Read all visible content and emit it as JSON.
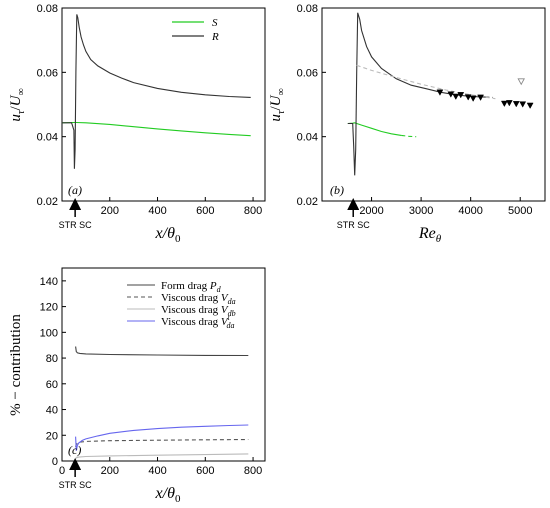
{
  "chart_data": [
    {
      "panel": "(a)",
      "type": "line",
      "xlabel": "x/θ0",
      "ylabel": "uτ/U∞",
      "xlim": [
        0,
        850
      ],
      "ylim": [
        0.02,
        0.08
      ],
      "xticks": [
        "200",
        "400",
        "600",
        "800"
      ],
      "yticks": [
        "0.02",
        "0.04",
        "0.06",
        "0.08"
      ],
      "annotation": "STR SC",
      "annotation_x": 55,
      "legend_position": "top-right",
      "series": [
        {
          "name": "S",
          "color": "#22cc22",
          "x": [
            0,
            40,
            60,
            100,
            200,
            300,
            400,
            500,
            600,
            700,
            790
          ],
          "y": [
            0.0443,
            0.0444,
            0.0444,
            0.0443,
            0.0438,
            0.0431,
            0.0424,
            0.0418,
            0.0412,
            0.0407,
            0.0403
          ]
        },
        {
          "name": "R",
          "color": "#333333",
          "x": [
            0,
            40,
            50,
            52,
            55,
            58,
            62,
            66,
            72,
            80,
            90,
            100,
            120,
            150,
            200,
            250,
            300,
            400,
            500,
            600,
            700,
            790
          ],
          "y": [
            0.0443,
            0.0443,
            0.042,
            0.03,
            0.036,
            0.06,
            0.078,
            0.077,
            0.074,
            0.071,
            0.0685,
            0.0665,
            0.064,
            0.062,
            0.0598,
            0.0582,
            0.0568,
            0.055,
            0.0538,
            0.053,
            0.0525,
            0.0522
          ]
        }
      ]
    },
    {
      "panel": "(b)",
      "type": "line",
      "xlabel": "Reθ",
      "ylabel": "uτ/U∞",
      "xlim": [
        1000,
        5500
      ],
      "ylim": [
        0.02,
        0.08
      ],
      "xticks": [
        "2000",
        "3000",
        "4000",
        "5000"
      ],
      "yticks": [
        "0.02",
        "0.04",
        "0.06",
        "0.08"
      ],
      "annotation": "STR SC",
      "annotation_x": 1630,
      "series": [
        {
          "color": "#22cc22",
          "x": [
            1520,
            1620,
            1660,
            1700,
            1800,
            2000,
            2200,
            2400,
            2600
          ],
          "y": [
            0.0441,
            0.0442,
            0.0443,
            0.0441,
            0.0436,
            0.0426,
            0.0416,
            0.0409,
            0.0404
          ]
        },
        {
          "color": "#22cc22",
          "dashed": true,
          "x": [
            2600,
            2750,
            2900
          ],
          "y": [
            0.0404,
            0.0401,
            0.04
          ]
        },
        {
          "color": "#333333",
          "x": [
            1520,
            1620,
            1640,
            1660,
            1680,
            1700,
            1720,
            1760,
            1800,
            1900,
            2000,
            2200,
            2500,
            2800,
            3100,
            3400,
            3700,
            4000,
            4300
          ],
          "y": [
            0.0441,
            0.0441,
            0.037,
            0.028,
            0.036,
            0.06,
            0.0785,
            0.0765,
            0.073,
            0.068,
            0.0648,
            0.0612,
            0.058,
            0.056,
            0.0549,
            0.0538,
            0.053,
            0.0525,
            0.0523
          ]
        },
        {
          "color": "#333333",
          "dashed": true,
          "x": [
            4300,
            4450
          ],
          "y": [
            0.0523,
            0.0522
          ]
        },
        {
          "color": "#bbbbbb",
          "dashed": true,
          "x": [
            1700,
            2000,
            2500,
            3000,
            3500,
            4000,
            4500
          ],
          "y": [
            0.0622,
            0.0606,
            0.0584,
            0.0563,
            0.0545,
            0.053,
            0.0518
          ]
        },
        {
          "type": "scatter",
          "marker": "filled-triangle-down",
          "color": "#000000",
          "x": [
            3380,
            3600,
            3700,
            3800,
            3950,
            4050,
            4200,
            4680,
            4780,
            4920,
            5050,
            5200
          ],
          "y": [
            0.0538,
            0.0532,
            0.0525,
            0.053,
            0.0523,
            0.0519,
            0.0522,
            0.0503,
            0.0505,
            0.0502,
            0.0501,
            0.0497
          ]
        },
        {
          "type": "scatter",
          "marker": "open-triangle-down",
          "color": "#888888",
          "x": [
            5020
          ],
          "y": [
            0.0572
          ]
        }
      ]
    },
    {
      "panel": "(c)",
      "type": "line",
      "xlabel": "x/θ0",
      "ylabel": "% − contribution",
      "xlim": [
        0,
        850
      ],
      "ylim": [
        0,
        150
      ],
      "xticks": [
        "0",
        "200",
        "400",
        "600",
        "800"
      ],
      "yticks": [
        "0",
        "20",
        "40",
        "60",
        "80",
        "100",
        "120",
        "140"
      ],
      "annotation": "STR SC",
      "annotation_x": 55,
      "legend_position": "top-right",
      "series": [
        {
          "name": "Form drag Pd",
          "legend_text": "Form drag ",
          "legend_italic": "Pd",
          "color": "#444444",
          "style": "solid",
          "x": [
            57,
            60,
            65,
            75,
            100,
            200,
            400,
            600,
            780
          ],
          "y": [
            89,
            85,
            84,
            83.6,
            83.2,
            82.8,
            82.4,
            82.1,
            82
          ]
        },
        {
          "name": "Viscous drag Vda",
          "legend_text": "Viscous drag ",
          "legend_italic": "Vda",
          "color": "#555555",
          "style": "dashed",
          "x": [
            57,
            60,
            70,
            100,
            200,
            400,
            600,
            780
          ],
          "y": [
            11,
            13,
            14.5,
            15.2,
            15.8,
            16.2,
            16.5,
            16.7
          ]
        },
        {
          "name": "Viscous drag Vdb",
          "legend_text": "Viscous drag ",
          "legend_italic": "Vdb",
          "color": "#bbbbbb",
          "style": "solid",
          "x": [
            57,
            60,
            70,
            100,
            200,
            400,
            600,
            780
          ],
          "y": [
            2,
            2.5,
            3,
            3.5,
            4,
            4.5,
            5,
            5.5
          ]
        },
        {
          "name": "Viscous drag Vtda",
          "legend_text": "Viscous drag ",
          "legend_italic": "Vtda",
          "color": "#6666ee",
          "style": "solid",
          "x": [
            57,
            60,
            64,
            70,
            85,
            100,
            150,
            200,
            300,
            400,
            500,
            600,
            700,
            780
          ],
          "y": [
            19,
            8,
            12,
            14,
            16,
            17.2,
            19.5,
            21.5,
            23.8,
            25.2,
            26.3,
            27,
            27.6,
            28
          ]
        }
      ]
    }
  ]
}
